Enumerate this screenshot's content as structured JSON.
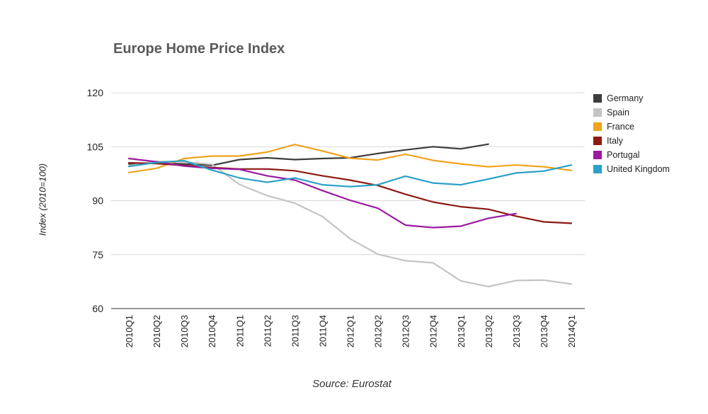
{
  "chart_data": {
    "type": "line",
    "title": "Europe Home Price Index",
    "xlabel": "",
    "ylabel": "Index (2010=100)",
    "source": "Source: Eurostat",
    "ylim": [
      60,
      120
    ],
    "yticks": [
      60,
      75,
      90,
      105,
      120
    ],
    "grid": true,
    "legend_position": "right",
    "categories": [
      "2010Q1",
      "2010Q2",
      "2010Q3",
      "2010Q4",
      "2011Q1",
      "2011Q2",
      "2011Q3",
      "2011Q4",
      "2012Q1",
      "2012Q2",
      "2012Q3",
      "2012Q4",
      "2013Q1",
      "2013Q2",
      "2013Q3",
      "2013Q4",
      "2014Q1"
    ],
    "series": [
      {
        "name": "Germany",
        "color": "#3d3d3d",
        "values": [
          100.2,
          100.4,
          100.2,
          99.8,
          101.4,
          101.9,
          101.4,
          101.7,
          101.9,
          103.1,
          104.1,
          105.0,
          104.4,
          105.7,
          null,
          null,
          null
        ]
      },
      {
        "name": "Spain",
        "color": "#c4c4c4",
        "values": [
          99.7,
          100.9,
          100.8,
          100.1,
          94.5,
          91.4,
          89.3,
          85.6,
          79.4,
          75.1,
          73.3,
          72.7,
          67.7,
          66.1,
          67.8,
          67.9,
          66.8
        ]
      },
      {
        "name": "France",
        "color": "#f0a31c",
        "values": [
          97.8,
          99.0,
          101.7,
          102.4,
          102.4,
          103.5,
          105.6,
          103.8,
          101.8,
          101.3,
          102.9,
          101.2,
          100.2,
          99.4,
          99.9,
          99.4,
          98.4
        ]
      },
      {
        "name": "Italy",
        "color": "#8b1a12",
        "values": [
          100.5,
          100.3,
          99.8,
          99.2,
          98.8,
          98.8,
          98.3,
          96.9,
          95.7,
          94.2,
          91.8,
          89.6,
          88.3,
          87.6,
          85.7,
          84.1,
          83.7
        ]
      },
      {
        "name": "Portugal",
        "color": "#9a1aa2",
        "values": [
          101.7,
          100.8,
          99.6,
          99.0,
          98.7,
          96.9,
          95.7,
          92.8,
          90.1,
          87.9,
          83.2,
          82.5,
          82.9,
          85.1,
          86.4,
          null,
          null
        ]
      },
      {
        "name": "United Kingdom",
        "color": "#2aa1c6",
        "values": [
          99.5,
          100.6,
          101.1,
          98.5,
          96.3,
          95.1,
          96.3,
          94.4,
          93.9,
          94.4,
          96.8,
          94.9,
          94.4,
          96.0,
          97.7,
          98.2,
          99.9
        ]
      }
    ]
  }
}
